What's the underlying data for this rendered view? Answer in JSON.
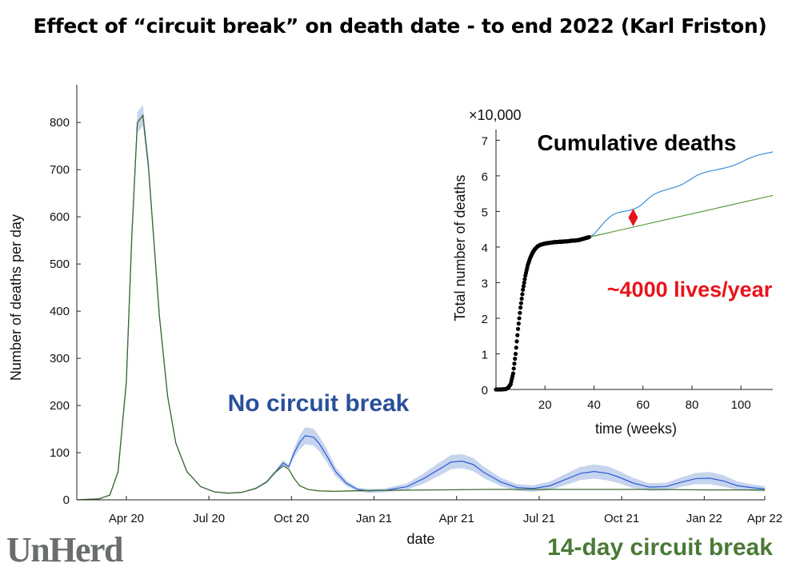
{
  "page": {
    "title": "Effect of “circuit break” on death date - to end 2022 (Karl Friston)"
  },
  "logo": {
    "text": "UnHerd"
  },
  "colors": {
    "no_break": "#1f4fd6",
    "band": "#c6d4ee",
    "circuit_break": "#3f6b2e",
    "inset_blue": "#3a8fd6",
    "inset_green": "#5a9a3e",
    "observed": "#000000",
    "marker": "#e8141c"
  },
  "chart_data": [
    {
      "type": "line",
      "title": "",
      "xlabel": "date",
      "ylabel": "Number of deaths per day",
      "x_unit": "months since Mar 2020",
      "xlim": [
        0,
        25
      ],
      "ylim": [
        0,
        880
      ],
      "yticks": [
        0,
        100,
        200,
        300,
        400,
        500,
        600,
        700,
        800
      ],
      "xtick_labels": [
        "Apr 20",
        "Jul 20",
        "Oct 20",
        "Jan 21",
        "Apr 21",
        "Jul 21",
        "Oct 21",
        "Jan 22",
        "Apr 22"
      ],
      "xtick_positions": [
        1.8,
        4.8,
        7.8,
        10.8,
        13.8,
        16.8,
        19.8,
        22.8,
        25.0
      ],
      "annotations": {
        "no_break": "No circuit break",
        "circuit_break": "14-day circuit break"
      },
      "series": [
        {
          "name": "No circuit break",
          "x": [
            0,
            0.8,
            1.2,
            1.5,
            1.8,
            2.0,
            2.2,
            2.4,
            2.6,
            2.8,
            3.0,
            3.3,
            3.6,
            4.0,
            4.5,
            5.0,
            5.5,
            6.0,
            6.5,
            6.9,
            7.2,
            7.5,
            7.7,
            7.9,
            8.1,
            8.3,
            8.6,
            8.8,
            9.1,
            9.4,
            9.8,
            10.2,
            10.6,
            11.2,
            12.0,
            12.6,
            13.2,
            13.6,
            14.0,
            14.4,
            14.8,
            15.4,
            16.0,
            16.6,
            17.2,
            17.8,
            18.3,
            18.8,
            19.3,
            19.7,
            20.2,
            20.8,
            21.4,
            22.0,
            22.5,
            23.0,
            23.5,
            24.0,
            24.5,
            25.0
          ],
          "values": [
            0,
            2,
            10,
            60,
            250,
            560,
            800,
            815,
            710,
            550,
            390,
            220,
            120,
            60,
            28,
            17,
            14,
            16,
            24,
            38,
            58,
            78,
            70,
            100,
            122,
            136,
            133,
            120,
            92,
            60,
            35,
            22,
            19,
            20,
            28,
            45,
            66,
            80,
            82,
            75,
            58,
            38,
            26,
            24,
            30,
            44,
            56,
            60,
            56,
            48,
            36,
            27,
            28,
            38,
            45,
            46,
            40,
            30,
            26,
            23
          ],
          "band_half_width": [
            0,
            0,
            1,
            3,
            8,
            14,
            22,
            22,
            16,
            10,
            6,
            4,
            2,
            1,
            1,
            1,
            1,
            1,
            2,
            3,
            4,
            6,
            5,
            10,
            15,
            18,
            18,
            16,
            14,
            10,
            6,
            4,
            4,
            4,
            7,
            11,
            14,
            15,
            15,
            14,
            12,
            9,
            7,
            7,
            9,
            12,
            14,
            15,
            15,
            13,
            11,
            8,
            8,
            10,
            12,
            13,
            12,
            9,
            7,
            6
          ]
        },
        {
          "name": "14-day circuit break",
          "x": [
            0,
            0.8,
            1.2,
            1.5,
            1.8,
            2.0,
            2.2,
            2.4,
            2.6,
            2.8,
            3.0,
            3.3,
            3.6,
            4.0,
            4.5,
            5.0,
            5.5,
            6.0,
            6.5,
            6.9,
            7.2,
            7.5,
            7.7,
            7.9,
            8.1,
            8.4,
            8.8,
            9.4,
            10.0,
            11.0,
            13.0,
            15.0,
            17.0,
            19.0,
            21.0,
            23.0,
            25.0
          ],
          "values": [
            0,
            2,
            10,
            60,
            250,
            560,
            800,
            815,
            710,
            550,
            390,
            220,
            120,
            60,
            28,
            17,
            14,
            16,
            24,
            38,
            58,
            72,
            65,
            45,
            30,
            22,
            19,
            18,
            19,
            20,
            21,
            22,
            22,
            22,
            22,
            21,
            21
          ]
        }
      ]
    },
    {
      "type": "line",
      "title": "Cumulative deaths",
      "xlabel": "time (weeks)",
      "ylabel": "Total number of deaths",
      "y_multiplier": "×10,000",
      "xlim": [
        0,
        113
      ],
      "ylim": [
        0,
        7.3
      ],
      "xticks": [
        20,
        40,
        60,
        80,
        100
      ],
      "yticks": [
        0,
        1,
        2,
        3,
        4,
        5,
        6,
        7
      ],
      "annotation": "~4000 lives/year",
      "marker_point": {
        "x": 56,
        "y": 4.83
      },
      "series": [
        {
          "name": "observed",
          "style": "dots",
          "x": [
            0,
            2,
            4,
            5,
            6,
            7,
            8,
            9,
            10,
            11,
            12,
            13,
            14,
            15,
            16,
            17,
            18,
            19,
            20,
            21,
            22,
            23,
            24,
            25,
            26,
            27,
            28,
            29,
            30,
            31,
            32,
            33,
            34,
            35,
            36,
            37,
            38
          ],
          "values": [
            0,
            0,
            0.01,
            0.05,
            0.15,
            0.45,
            1.0,
            1.7,
            2.3,
            2.8,
            3.2,
            3.5,
            3.7,
            3.85,
            3.95,
            4.02,
            4.06,
            4.08,
            4.1,
            4.11,
            4.12,
            4.13,
            4.14,
            4.14,
            4.15,
            4.15,
            4.16,
            4.16,
            4.17,
            4.18,
            4.18,
            4.19,
            4.2,
            4.22,
            4.24,
            4.26,
            4.28
          ]
        },
        {
          "name": "No circuit break",
          "x": [
            38,
            40,
            42,
            44,
            46,
            48,
            50,
            52,
            54,
            56,
            58,
            60,
            62,
            64,
            66,
            68,
            70,
            72,
            74,
            76,
            78,
            80,
            82,
            84,
            86,
            88,
            90,
            92,
            94,
            96,
            98,
            100,
            102,
            104,
            106,
            108,
            110,
            113
          ],
          "values": [
            4.28,
            4.36,
            4.52,
            4.68,
            4.82,
            4.92,
            4.97,
            5.0,
            5.02,
            5.06,
            5.12,
            5.22,
            5.35,
            5.46,
            5.53,
            5.58,
            5.62,
            5.66,
            5.7,
            5.76,
            5.84,
            5.93,
            6.01,
            6.07,
            6.11,
            6.14,
            6.17,
            6.2,
            6.23,
            6.27,
            6.32,
            6.38,
            6.45,
            6.51,
            6.56,
            6.6,
            6.63,
            6.67
          ]
        },
        {
          "name": "14-day circuit break",
          "x": [
            38,
            113
          ],
          "values": [
            4.28,
            5.45
          ]
        }
      ]
    }
  ]
}
